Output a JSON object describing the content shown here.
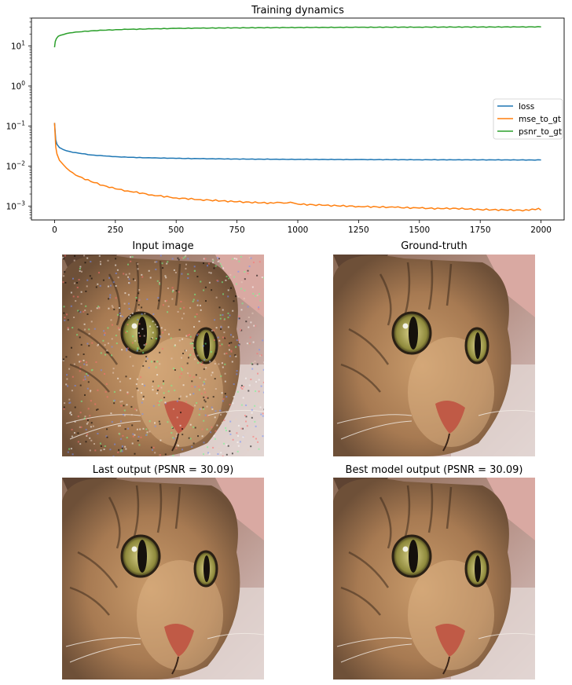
{
  "chart_data": [
    {
      "type": "line",
      "title": "Training dynamics",
      "xlabel": "",
      "ylabel": "",
      "yscale": "log",
      "xlim": [
        -95,
        2095
      ],
      "ylim": [
        0.00045,
        50
      ],
      "xticks": [
        0,
        250,
        500,
        750,
        1000,
        1250,
        1500,
        1750,
        2000
      ],
      "xtick_labels": [
        "0",
        "250",
        "500",
        "750",
        "1000",
        "1250",
        "1500",
        "1750",
        "2000"
      ],
      "yticks": [
        0.001,
        0.01,
        0.1,
        1,
        10
      ],
      "ytick_base": "10",
      "ytick_exponents": [
        "−3",
        "−2",
        "−1",
        "0",
        "1"
      ],
      "grid": false,
      "legend_placement": "center-right",
      "series": [
        {
          "name": "loss",
          "color": "#1f77b4",
          "x": [
            0,
            5,
            10,
            20,
            35,
            50,
            75,
            100,
            150,
            200,
            250,
            300,
            400,
            500,
            600,
            750,
            900,
            1000,
            1250,
            1500,
            1750,
            2000
          ],
          "y": [
            0.12,
            0.045,
            0.035,
            0.029,
            0.026,
            0.024,
            0.022,
            0.021,
            0.019,
            0.018,
            0.0172,
            0.0166,
            0.016,
            0.0156,
            0.0153,
            0.015,
            0.0148,
            0.0147,
            0.0145,
            0.0144,
            0.0143,
            0.0142
          ]
        },
        {
          "name": "mse_to_gt",
          "color": "#ff7f0e",
          "x": [
            0,
            5,
            10,
            20,
            35,
            50,
            75,
            100,
            150,
            200,
            250,
            300,
            400,
            500,
            600,
            750,
            900,
            970,
            1000,
            1100,
            1250,
            1400,
            1500,
            1600,
            1650,
            1700,
            1750,
            1850,
            1950,
            1990,
            2000
          ],
          "y": [
            0.12,
            0.03,
            0.02,
            0.014,
            0.011,
            0.0088,
            0.0068,
            0.0055,
            0.0041,
            0.0033,
            0.0027,
            0.0024,
            0.0019,
            0.0016,
            0.00145,
            0.00128,
            0.00118,
            0.00125,
            0.00112,
            0.00105,
            0.00098,
            0.00093,
            0.00089,
            0.00086,
            0.00088,
            0.00084,
            0.00082,
            0.0008,
            0.00078,
            0.00088,
            0.00079
          ]
        },
        {
          "name": "psnr_to_gt",
          "color": "#2ca02c",
          "x": [
            0,
            3,
            8,
            15,
            25,
            50,
            75,
            100,
            150,
            200,
            250,
            300,
            400,
            500,
            600,
            750,
            900,
            1000,
            1250,
            1500,
            1750,
            2000
          ],
          "y": [
            9.3,
            13,
            15.5,
            17.5,
            18.6,
            20.6,
            21.7,
            22.6,
            24,
            24.8,
            25.6,
            26.1,
            26.9,
            27.6,
            28,
            28.5,
            28.8,
            29,
            29.4,
            29.7,
            29.9,
            30.1
          ]
        }
      ]
    }
  ],
  "images": [
    {
      "title": "Input image",
      "noisy": true
    },
    {
      "title": "Ground-truth",
      "noisy": false
    },
    {
      "title": "Last output (PSNR = 30.09)",
      "noisy": false
    },
    {
      "title": "Best model output (PSNR = 30.09)",
      "noisy": false
    }
  ]
}
